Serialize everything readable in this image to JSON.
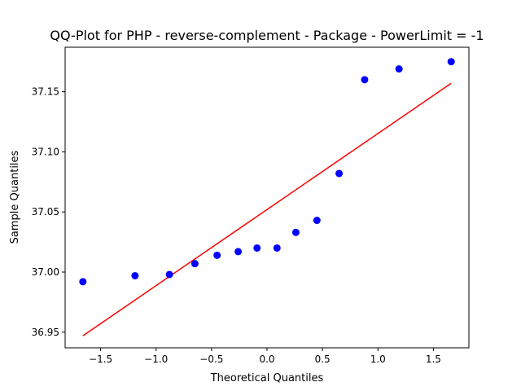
{
  "chart_data": {
    "type": "scatter",
    "title": "QQ-Plot for PHP - reverse-complement - Package - PowerLimit = -1",
    "xlabel": "Theoretical Quantiles",
    "ylabel": "Sample Quantiles",
    "xlim": [
      -1.82,
      1.82
    ],
    "ylim": [
      36.937,
      37.187
    ],
    "xticks": [
      -1.5,
      -1.0,
      -0.5,
      0.0,
      0.5,
      1.0,
      1.5
    ],
    "xtick_labels": [
      "−1.5",
      "−1.0",
      "−0.5",
      "0.0",
      "0.5",
      "1.0",
      "1.5"
    ],
    "yticks": [
      36.95,
      37.0,
      37.05,
      37.1,
      37.15
    ],
    "ytick_labels": [
      "36.95",
      "37.00",
      "37.05",
      "37.10",
      "37.15"
    ],
    "grid": false,
    "points_color": "#0000ff",
    "line_color": "#ff0000",
    "points": [
      {
        "x": -1.66,
        "y": 36.992
      },
      {
        "x": -1.19,
        "y": 36.997
      },
      {
        "x": -0.88,
        "y": 36.998
      },
      {
        "x": -0.65,
        "y": 37.007
      },
      {
        "x": -0.45,
        "y": 37.014
      },
      {
        "x": -0.26,
        "y": 37.017
      },
      {
        "x": -0.09,
        "y": 37.02
      },
      {
        "x": 0.09,
        "y": 37.02
      },
      {
        "x": 0.26,
        "y": 37.033
      },
      {
        "x": 0.45,
        "y": 37.043
      },
      {
        "x": 0.65,
        "y": 37.082
      },
      {
        "x": 0.88,
        "y": 37.16
      },
      {
        "x": 1.19,
        "y": 37.169
      },
      {
        "x": 1.66,
        "y": 37.175
      }
    ],
    "fit_line": [
      {
        "x": -1.66,
        "y": 36.947
      },
      {
        "x": 1.66,
        "y": 37.157
      }
    ]
  }
}
